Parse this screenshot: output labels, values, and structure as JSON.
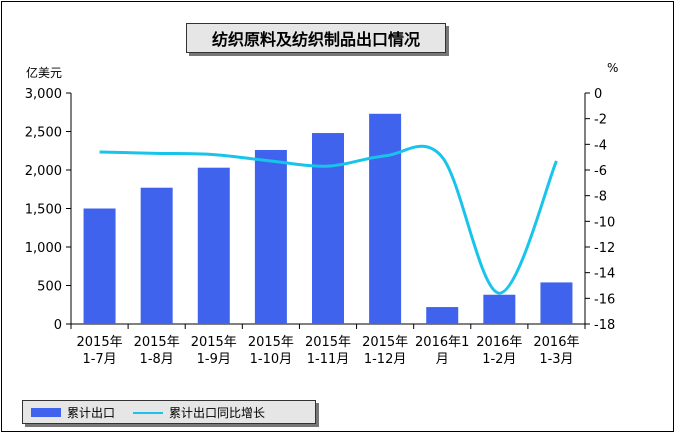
{
  "chart_data": {
    "type": "bar",
    "title": "纺织原料及纺织制品出口情况",
    "categories": [
      [
        "2015年",
        "1-7月"
      ],
      [
        "2015年",
        "1-8月"
      ],
      [
        "2015年",
        "1-9月"
      ],
      [
        "2015年",
        "1-10月"
      ],
      [
        "2015年",
        "1-11月"
      ],
      [
        "2015年",
        "1-12月"
      ],
      [
        "2016年1",
        "月"
      ],
      [
        "2016年",
        "1-2月"
      ],
      [
        "2016年",
        "1-3月"
      ]
    ],
    "series": [
      {
        "name": "累计出口",
        "type": "bar",
        "axis": "left",
        "values": [
          1500,
          1770,
          2030,
          2260,
          2480,
          2730,
          220,
          380,
          540
        ]
      },
      {
        "name": "累计出口同比增长",
        "type": "line",
        "axis": "right",
        "values": [
          -4.6,
          -4.7,
          -4.8,
          -5.3,
          -5.7,
          -4.9,
          -5.0,
          -15.6,
          -5.3
        ]
      }
    ],
    "y_left": {
      "label": "亿美元",
      "ylim": [
        0,
        3000
      ],
      "ticks": [
        "0",
        "500",
        "1,000",
        "1,500",
        "2,000",
        "2,500",
        "3,000"
      ]
    },
    "y_right": {
      "label": "%",
      "ylim": [
        -18,
        0
      ],
      "ticks": [
        "0",
        "-2",
        "-4",
        "-6",
        "-8",
        "-10",
        "-12",
        "-14",
        "-16",
        "-18"
      ]
    },
    "legend_position": "bottom-left",
    "grid": false,
    "colors": {
      "bar": "#3f63ec",
      "line": "#19c4ec"
    }
  }
}
